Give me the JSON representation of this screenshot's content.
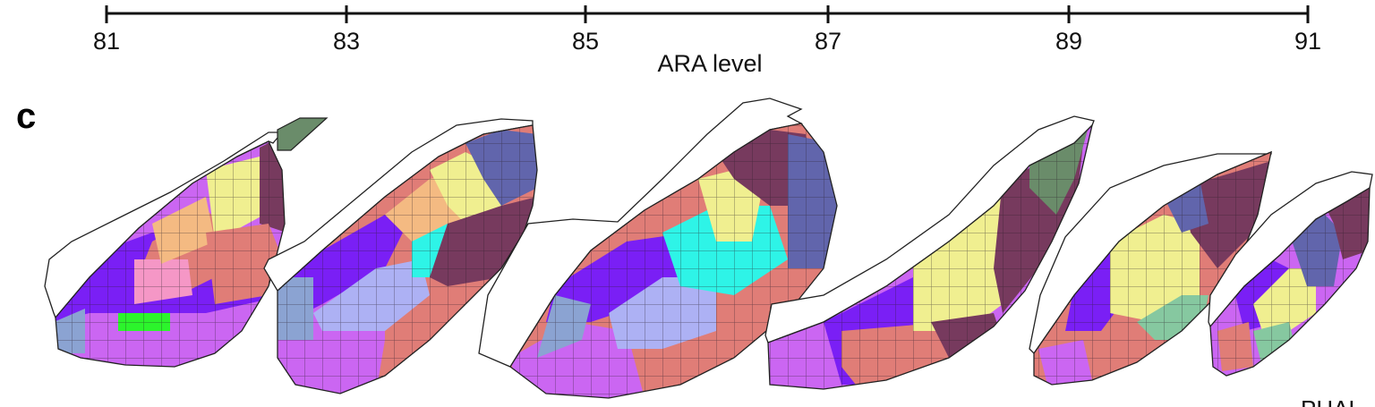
{
  "axis": {
    "title": "ARA level",
    "ticks": [
      "81",
      "83",
      "85",
      "87",
      "89",
      "91"
    ]
  },
  "panel": {
    "letter": "c"
  },
  "corner_text": "PHAL",
  "colors": {
    "purple": "#7a1ff5",
    "violet": "#cb66f2",
    "salmon": "#e07d77",
    "plum": "#773a5e",
    "yellow": "#f0ef90",
    "peach": "#f4ba82",
    "pink": "#f597c6",
    "slate": "#6165ac",
    "lavender": "#adb1f4",
    "steelblue": "#8ba3d2",
    "cyan": "#2ef4e7",
    "green": "#2cf42c",
    "sage": "#6a8c6a",
    "mint": "#86c8a0",
    "outline": "#222222",
    "grid": "rgba(40,30,40,0.55)"
  },
  "sections": [
    "81",
    "83",
    "85",
    "87",
    "89",
    "91"
  ]
}
